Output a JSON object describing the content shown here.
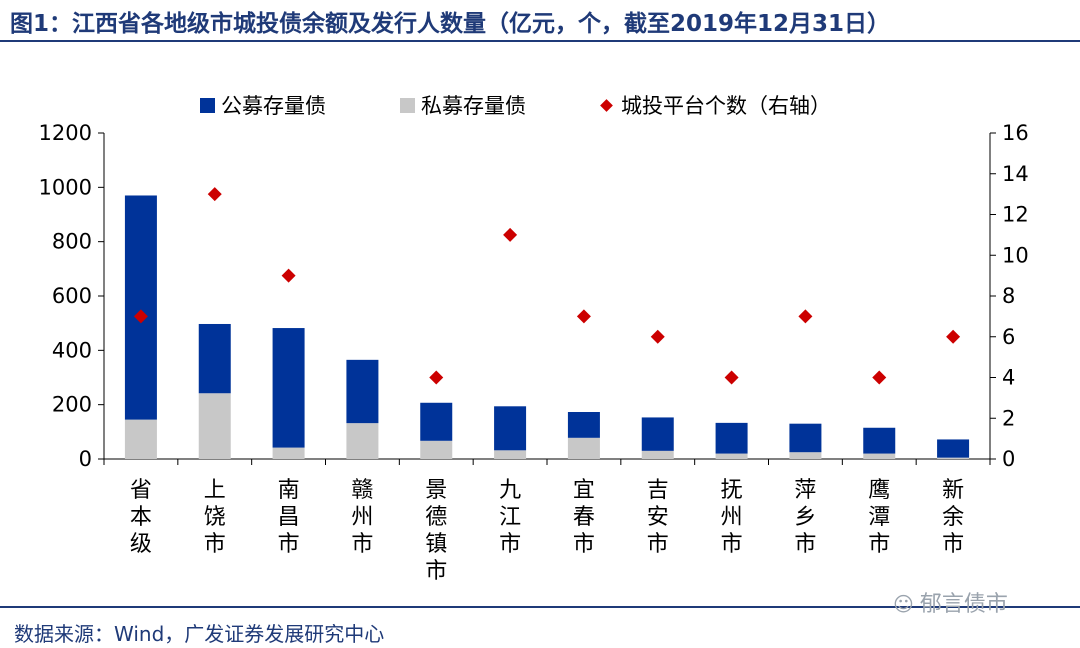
{
  "header": {
    "title": "图1：江西省各地级市城投债余额及发行人数量（亿元，个，截至2019年12月31日）"
  },
  "colors": {
    "public": "#003399",
    "private": "#c8c8c8",
    "marker": "#cc0000",
    "brand": "#1f3a78"
  },
  "legend": {
    "public_label": "公募存量债",
    "private_label": "私募存量债",
    "count_label": "城投平台个数（右轴）"
  },
  "footer": {
    "source": "数据来源：Wind，广发证券发展研究中心",
    "watermark": "郁言债市"
  },
  "chart_data": {
    "type": "bar",
    "stacked": true,
    "title": "江西省各地级市城投债余额及发行人数量（亿元，个，截至2019年12月31日）",
    "categories": [
      "省本级",
      "上饶市",
      "南昌市",
      "赣州市",
      "景德镇市",
      "九江市",
      "宜春市",
      "吉安市",
      "抚州市",
      "萍乡市",
      "鹰潭市",
      "新余市"
    ],
    "series": [
      {
        "name": "私募存量债",
        "axis": "left",
        "type": "bar",
        "values": [
          145,
          242,
          42,
          132,
          67,
          32,
          78,
          30,
          20,
          25,
          20,
          5
        ]
      },
      {
        "name": "公募存量债",
        "axis": "left",
        "type": "bar",
        "values": [
          825,
          255,
          440,
          233,
          140,
          162,
          95,
          123,
          113,
          105,
          95,
          67
        ]
      },
      {
        "name": "城投平台个数（右轴）",
        "axis": "right",
        "type": "scatter",
        "values": [
          7,
          13,
          9,
          null,
          4,
          11,
          7,
          6,
          4,
          7,
          4,
          6
        ]
      }
    ],
    "y_left": {
      "min": 0,
      "max": 1200,
      "ticks": [
        0,
        200,
        400,
        600,
        800,
        1000,
        1200
      ]
    },
    "y_right": {
      "min": 0,
      "max": 16,
      "ticks": [
        0,
        2,
        4,
        6,
        8,
        10,
        12,
        14,
        16
      ]
    },
    "legend_position": "top",
    "grid": false
  }
}
